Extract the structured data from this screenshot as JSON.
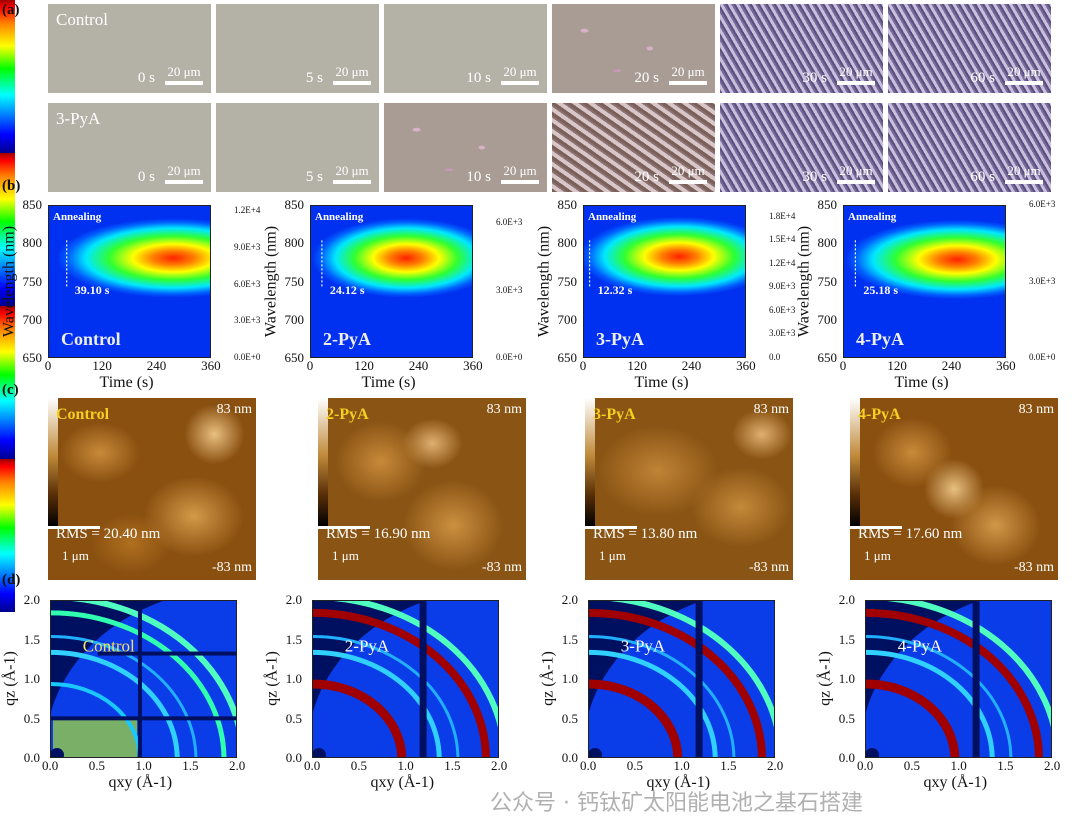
{
  "panel_labels": {
    "a": "(a)",
    "b": "(b)",
    "c": "(c)",
    "d": "(d)"
  },
  "panel_a": {
    "scale_bar": "20 μm",
    "rows": [
      {
        "label": "Control",
        "frames": [
          {
            "time": "0 s",
            "crystal": 0
          },
          {
            "time": "5 s",
            "crystal": 0
          },
          {
            "time": "10 s",
            "crystal": 0
          },
          {
            "time": "20 s",
            "crystal": 1
          },
          {
            "time": "30 s",
            "crystal": 3
          },
          {
            "time": "60 s",
            "crystal": 3
          }
        ]
      },
      {
        "label": "3-PyA",
        "frames": [
          {
            "time": "0 s",
            "crystal": 0
          },
          {
            "time": "5 s",
            "crystal": 0
          },
          {
            "time": "10 s",
            "crystal": 1
          },
          {
            "time": "20 s",
            "crystal": 2
          },
          {
            "time": "30 s",
            "crystal": 3
          },
          {
            "time": "60 s",
            "crystal": 3
          }
        ]
      }
    ]
  },
  "chart_data": [
    {
      "type": "heatmap",
      "name": "Control",
      "annotation": "Annealing",
      "onset_label": "39.10 s",
      "onset_time": 39.1,
      "peak_time": 275,
      "peak_wavelength": 782,
      "xlabel": "Time (s)",
      "ylabel": "Wavelength (nm)",
      "xlim": [
        0,
        360
      ],
      "ylim": [
        650,
        850
      ],
      "xticks": [
        "0",
        "120",
        "240",
        "360"
      ],
      "yticks": [
        "850",
        "800",
        "750",
        "700",
        "650"
      ],
      "colorbar_ticks": [
        "1.2E+4",
        "9.0E+3",
        "6.0E+3",
        "3.0E+3",
        "0.0E+0"
      ],
      "colorbar_range": [
        0,
        12500
      ]
    },
    {
      "type": "heatmap",
      "name": "2-PyA",
      "annotation": "Annealing",
      "onset_label": "24.12 s",
      "onset_time": 24.12,
      "peak_time": 210,
      "peak_wavelength": 782,
      "xlabel": "Time (s)",
      "ylabel": "Wavelength (nm)",
      "xlim": [
        0,
        360
      ],
      "ylim": [
        650,
        850
      ],
      "xticks": [
        "0",
        "120",
        "240",
        "360"
      ],
      "yticks": [
        "850",
        "800",
        "750",
        "700",
        "650"
      ],
      "colorbar_ticks": [
        "6.0E+3",
        "3.0E+3",
        "0.0E+0"
      ],
      "colorbar_range": [
        0,
        6800
      ]
    },
    {
      "type": "heatmap",
      "name": "3-PyA",
      "annotation": "Annealing",
      "onset_label": "12.32 s",
      "onset_time": 12.32,
      "peak_time": 210,
      "peak_wavelength": 784,
      "xlabel": "Time (s)",
      "ylabel": "Wavelength (nm)",
      "xlim": [
        0,
        360
      ],
      "ylim": [
        650,
        850
      ],
      "xticks": [
        "0",
        "120",
        "240",
        "360"
      ],
      "yticks": [
        "850",
        "800",
        "750",
        "700",
        "650"
      ],
      "colorbar_ticks": [
        "1.8E+4",
        "1.5E+4",
        "1.2E+4",
        "9.0E+3",
        "6.0E+3",
        "3.0E+3",
        "0.0"
      ],
      "colorbar_range": [
        0,
        19500
      ]
    },
    {
      "type": "heatmap",
      "name": "4-PyA",
      "annotation": "Annealing",
      "onset_label": "25.18 s",
      "onset_time": 25.18,
      "peak_time": 250,
      "peak_wavelength": 780,
      "xlabel": "Time (s)",
      "ylabel": "Wavelength (nm)",
      "xlim": [
        0,
        360
      ],
      "ylim": [
        650,
        850
      ],
      "xticks": [
        "0",
        "120",
        "240",
        "360"
      ],
      "yticks": [
        "850",
        "800",
        "750",
        "700",
        "650"
      ],
      "colorbar_ticks": [
        "6.0E+3",
        "3.0E+3",
        "0.0E+0"
      ],
      "colorbar_range": [
        0,
        6000
      ]
    }
  ],
  "panel_c": {
    "scale_bar": "1 μm",
    "colorbar_max": "83 nm",
    "colorbar_min": "-83 nm",
    "images": [
      {
        "name": "Control",
        "rms": "RMS = 20.40 nm",
        "label_color": "#f5d020"
      },
      {
        "name": "2-PyA",
        "rms": "RMS = 16.90 nm",
        "label_color": "#f5d020"
      },
      {
        "name": "3-PyA",
        "rms": "RMS = 13.80 nm",
        "label_color": "#f5d020"
      },
      {
        "name": "4-PyA",
        "rms": "RMS = 17.60 nm",
        "label_color": "#f5d020"
      }
    ]
  },
  "panel_d": {
    "xticks": [
      "0.0",
      "0.5",
      "1.0",
      "1.5",
      "2.0"
    ],
    "yticks": [
      "2.0",
      "1.5",
      "1.0",
      "0.5",
      "0.0"
    ],
    "xlabel": "qxy (Å-1)",
    "ylabel": "qz (Å-1)",
    "xlim": [
      0,
      2
    ],
    "ylim": [
      0,
      2
    ],
    "images": [
      {
        "name": "Control",
        "label_color": "#f5e060"
      },
      {
        "name": "2-PyA",
        "label_color": "#ffffff"
      },
      {
        "name": "3-PyA",
        "label_color": "#ffffff"
      },
      {
        "name": "4-PyA",
        "label_color": "#ffffff"
      }
    ]
  },
  "watermark": "公众号 · 钙钛矿太阳能电池之基石搭建"
}
